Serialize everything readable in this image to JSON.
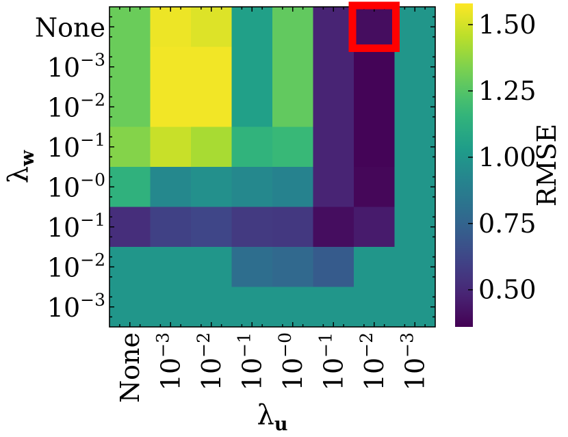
{
  "chart_data": {
    "type": "heatmap",
    "xlabel": "λu",
    "ylabel": "λw",
    "colorbar_label": "RMSE",
    "colormap": "viridis",
    "vmin": 0.36,
    "vmax": 1.58,
    "colorbar_ticks": [
      "0.50",
      "0.75",
      "1.00",
      "1.25",
      "1.50"
    ],
    "colorbar_tick_values": [
      0.5,
      0.75,
      1.0,
      1.25,
      1.5
    ],
    "x_tick_labels": [
      {
        "base": "None",
        "exp": ""
      },
      {
        "base": "10",
        "exp": "−3"
      },
      {
        "base": "10",
        "exp": "−2"
      },
      {
        "base": "10",
        "exp": "−1"
      },
      {
        "base": "10",
        "exp": "−0"
      },
      {
        "base": "10",
        "exp": "−1"
      },
      {
        "base": "10",
        "exp": "−2"
      },
      {
        "base": "10",
        "exp": "−3"
      }
    ],
    "y_tick_labels": [
      {
        "base": "None",
        "exp": ""
      },
      {
        "base": "10",
        "exp": "−3"
      },
      {
        "base": "10",
        "exp": "−2"
      },
      {
        "base": "10",
        "exp": "−1"
      },
      {
        "base": "10",
        "exp": "−0"
      },
      {
        "base": "10",
        "exp": "−1"
      },
      {
        "base": "10",
        "exp": "−2"
      },
      {
        "base": "10",
        "exp": "−3"
      }
    ],
    "values": [
      [
        1.3,
        1.55,
        1.52,
        1.05,
        1.28,
        0.48,
        0.4,
        1.0
      ],
      [
        1.3,
        1.56,
        1.56,
        1.05,
        1.28,
        0.48,
        0.37,
        1.0
      ],
      [
        1.3,
        1.56,
        1.56,
        1.05,
        1.28,
        0.48,
        0.37,
        1.0
      ],
      [
        1.35,
        1.48,
        1.42,
        1.15,
        1.18,
        0.48,
        0.37,
        1.0
      ],
      [
        1.14,
        0.93,
        0.97,
        0.93,
        0.9,
        0.48,
        0.38,
        1.0
      ],
      [
        0.52,
        0.6,
        0.62,
        0.57,
        0.56,
        0.4,
        0.45,
        1.0
      ],
      [
        1.0,
        1.0,
        1.0,
        0.8,
        0.77,
        0.71,
        1.0,
        1.0
      ],
      [
        1.0,
        1.0,
        1.0,
        1.0,
        1.0,
        1.0,
        1.0,
        1.0
      ]
    ],
    "highlight_cell": {
      "row": 0,
      "col": 6,
      "color": "#ff0000"
    }
  }
}
